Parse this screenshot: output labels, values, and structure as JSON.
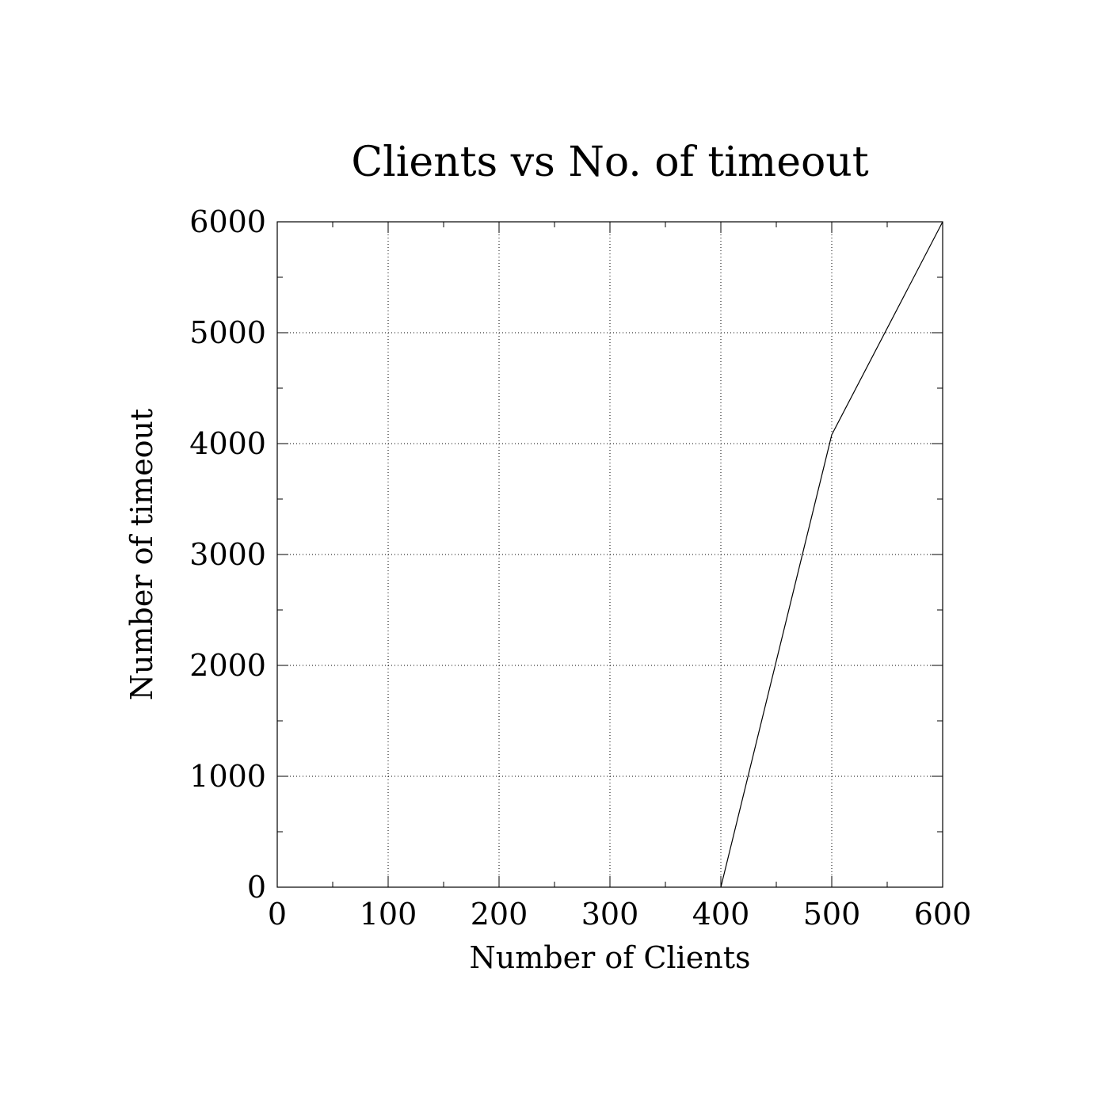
{
  "chart_data": {
    "type": "line",
    "title": "Clients vs No. of timeout",
    "xlabel": "Number of Clients",
    "ylabel": "Number of timeout",
    "xlim": [
      0,
      600
    ],
    "ylim": [
      0,
      6000
    ],
    "x_ticks": [
      "0",
      "100",
      "200",
      "300",
      "400",
      "500",
      "600"
    ],
    "y_ticks": [
      "0",
      "1000",
      "2000",
      "3000",
      "4000",
      "5000",
      "6000"
    ],
    "grid": true,
    "legend": "none",
    "series": [
      {
        "x": [
          400,
          500,
          600
        ],
        "y": [
          0,
          4080,
          6000
        ]
      }
    ]
  }
}
